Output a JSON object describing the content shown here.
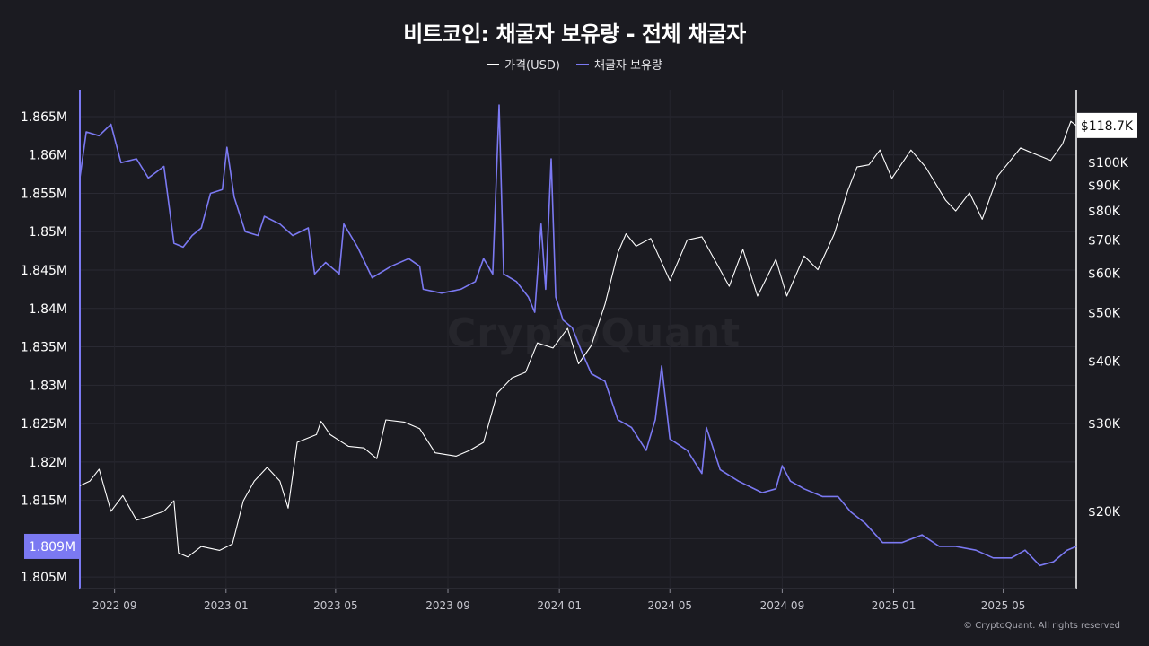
{
  "title": "비트코인: 채굴자 보유량 - 전체 채굴자",
  "legend": [
    {
      "label": "가격(USD)",
      "color": "#ffffff"
    },
    {
      "label": "채굴자 보유량",
      "color": "#7b79f2"
    }
  ],
  "watermark": "CryptoQuant",
  "copyright": "© CryptoQuant. All rights reserved",
  "left_current_label": "1.809M",
  "right_current_label": "$118.7K",
  "chart_data": {
    "type": "line",
    "title": "비트코인: 채굴자 보유량 - 전체 채굴자",
    "x_range": [
      "2022-07-25",
      "2025-07-20"
    ],
    "x_ticks": [
      {
        "date": "2022-09-01",
        "label": "2022 09"
      },
      {
        "date": "2023-01-01",
        "label": "2023 01"
      },
      {
        "date": "2023-05-01",
        "label": "2023 05"
      },
      {
        "date": "2023-09-01",
        "label": "2023 09"
      },
      {
        "date": "2024-01-01",
        "label": "2024 01"
      },
      {
        "date": "2024-05-01",
        "label": "2024 05"
      },
      {
        "date": "2024-09-01",
        "label": "2024 09"
      },
      {
        "date": "2025-01-01",
        "label": "2025 01"
      },
      {
        "date": "2025-05-01",
        "label": "2025 05"
      }
    ],
    "y_left": {
      "range": [
        1.8035,
        1.8685
      ],
      "ticks": [
        {
          "value": 1.805,
          "label": "1.805M"
        },
        {
          "value": 1.81,
          "label": "1.81M"
        },
        {
          "value": 1.815,
          "label": "1.815M"
        },
        {
          "value": 1.82,
          "label": "1.82M"
        },
        {
          "value": 1.825,
          "label": "1.825M"
        },
        {
          "value": 1.83,
          "label": "1.83M"
        },
        {
          "value": 1.835,
          "label": "1.835M"
        },
        {
          "value": 1.84,
          "label": "1.84M"
        },
        {
          "value": 1.845,
          "label": "1.845M"
        },
        {
          "value": 1.85,
          "label": "1.85M"
        },
        {
          "value": 1.855,
          "label": "1.855M"
        },
        {
          "value": 1.86,
          "label": "1.86M"
        },
        {
          "value": 1.865,
          "label": "1.865M"
        }
      ]
    },
    "y_right": {
      "scale": "log",
      "range": [
        14000,
        140000
      ],
      "ticks": [
        {
          "value": 20000,
          "label": "$20K"
        },
        {
          "value": 30000,
          "label": "$30K"
        },
        {
          "value": 40000,
          "label": "$40K"
        },
        {
          "value": 50000,
          "label": "$50K"
        },
        {
          "value": 60000,
          "label": "$60K"
        },
        {
          "value": 70000,
          "label": "$70K"
        },
        {
          "value": 80000,
          "label": "$80K"
        },
        {
          "value": 90000,
          "label": "$90K"
        },
        {
          "value": 100000,
          "label": "$100K"
        }
      ]
    },
    "series": [
      {
        "name": "채굴자 보유량",
        "axis": "left",
        "color": "#7b79f2",
        "points": [
          [
            "2022-07-25",
            1.857
          ],
          [
            "2022-08-01",
            1.863
          ],
          [
            "2022-08-15",
            1.8625
          ],
          [
            "2022-08-28",
            1.864
          ],
          [
            "2022-09-08",
            1.859
          ],
          [
            "2022-09-25",
            1.8595
          ],
          [
            "2022-10-08",
            1.857
          ],
          [
            "2022-10-25",
            1.8585
          ],
          [
            "2022-11-05",
            1.8485
          ],
          [
            "2022-11-15",
            1.848
          ],
          [
            "2022-11-25",
            1.8495
          ],
          [
            "2022-12-05",
            1.8505
          ],
          [
            "2022-12-15",
            1.855
          ],
          [
            "2022-12-28",
            1.8555
          ],
          [
            "2023-01-02",
            1.861
          ],
          [
            "2023-01-10",
            1.8545
          ],
          [
            "2023-01-22",
            1.85
          ],
          [
            "2023-02-05",
            1.8495
          ],
          [
            "2023-02-12",
            1.852
          ],
          [
            "2023-03-01",
            1.851
          ],
          [
            "2023-03-15",
            1.8495
          ],
          [
            "2023-04-01",
            1.8505
          ],
          [
            "2023-04-08",
            1.8445
          ],
          [
            "2023-04-20",
            1.846
          ],
          [
            "2023-05-05",
            1.8445
          ],
          [
            "2023-05-10",
            1.851
          ],
          [
            "2023-05-25",
            1.848
          ],
          [
            "2023-06-10",
            1.844
          ],
          [
            "2023-07-01",
            1.8455
          ],
          [
            "2023-07-20",
            1.8465
          ],
          [
            "2023-08-01",
            1.8455
          ],
          [
            "2023-08-05",
            1.8425
          ],
          [
            "2023-08-25",
            1.842
          ],
          [
            "2023-09-15",
            1.8425
          ],
          [
            "2023-10-01",
            1.8435
          ],
          [
            "2023-10-10",
            1.8465
          ],
          [
            "2023-10-20",
            1.8445
          ],
          [
            "2023-10-27",
            1.8665
          ],
          [
            "2023-11-01",
            1.8445
          ],
          [
            "2023-11-15",
            1.8435
          ],
          [
            "2023-11-28",
            1.8415
          ],
          [
            "2023-12-05",
            1.8395
          ],
          [
            "2023-12-12",
            1.851
          ],
          [
            "2023-12-17",
            1.8425
          ],
          [
            "2023-12-23",
            1.8595
          ],
          [
            "2023-12-28",
            1.8415
          ],
          [
            "2024-01-05",
            1.8385
          ],
          [
            "2024-01-15",
            1.8375
          ],
          [
            "2024-01-25",
            1.8345
          ],
          [
            "2024-02-05",
            1.8315
          ],
          [
            "2024-02-20",
            1.8305
          ],
          [
            "2024-03-05",
            1.8255
          ],
          [
            "2024-03-20",
            1.8245
          ],
          [
            "2024-04-05",
            1.8215
          ],
          [
            "2024-04-15",
            1.8255
          ],
          [
            "2024-04-22",
            1.8325
          ],
          [
            "2024-05-01",
            1.823
          ],
          [
            "2024-05-20",
            1.8215
          ],
          [
            "2024-06-05",
            1.8185
          ],
          [
            "2024-06-10",
            1.8245
          ],
          [
            "2024-06-25",
            1.819
          ],
          [
            "2024-07-15",
            1.8175
          ],
          [
            "2024-08-10",
            1.816
          ],
          [
            "2024-08-25",
            1.8165
          ],
          [
            "2024-09-01",
            1.8195
          ],
          [
            "2024-09-10",
            1.8175
          ],
          [
            "2024-09-25",
            1.8165
          ],
          [
            "2024-10-15",
            1.8155
          ],
          [
            "2024-11-01",
            1.8155
          ],
          [
            "2024-11-15",
            1.8135
          ],
          [
            "2024-12-01",
            1.812
          ],
          [
            "2024-12-20",
            1.8095
          ],
          [
            "2025-01-10",
            1.8095
          ],
          [
            "2025-02-01",
            1.8105
          ],
          [
            "2025-02-20",
            1.809
          ],
          [
            "2025-03-10",
            1.809
          ],
          [
            "2025-04-01",
            1.8085
          ],
          [
            "2025-04-20",
            1.8075
          ],
          [
            "2025-05-10",
            1.8075
          ],
          [
            "2025-05-25",
            1.8085
          ],
          [
            "2025-06-10",
            1.8065
          ],
          [
            "2025-06-25",
            1.807
          ],
          [
            "2025-07-05",
            1.808
          ],
          [
            "2025-07-10",
            1.8085
          ],
          [
            "2025-07-20",
            1.809
          ]
        ]
      },
      {
        "name": "가격(USD)",
        "axis": "right",
        "color": "#ffffff",
        "points": [
          [
            "2022-07-25",
            22500
          ],
          [
            "2022-08-05",
            23000
          ],
          [
            "2022-08-15",
            24300
          ],
          [
            "2022-08-28",
            20000
          ],
          [
            "2022-09-10",
            21500
          ],
          [
            "2022-09-25",
            19200
          ],
          [
            "2022-10-08",
            19500
          ],
          [
            "2022-10-25",
            20000
          ],
          [
            "2022-11-05",
            21000
          ],
          [
            "2022-11-10",
            16500
          ],
          [
            "2022-11-20",
            16200
          ],
          [
            "2022-12-05",
            17000
          ],
          [
            "2022-12-25",
            16700
          ],
          [
            "2023-01-08",
            17200
          ],
          [
            "2023-01-20",
            21000
          ],
          [
            "2023-02-01",
            23000
          ],
          [
            "2023-02-15",
            24500
          ],
          [
            "2023-03-01",
            23000
          ],
          [
            "2023-03-10",
            20300
          ],
          [
            "2023-03-20",
            27500
          ],
          [
            "2023-04-10",
            28500
          ],
          [
            "2023-04-15",
            30300
          ],
          [
            "2023-04-25",
            28500
          ],
          [
            "2023-05-15",
            27000
          ],
          [
            "2023-06-01",
            26800
          ],
          [
            "2023-06-15",
            25500
          ],
          [
            "2023-06-25",
            30500
          ],
          [
            "2023-07-15",
            30200
          ],
          [
            "2023-08-01",
            29300
          ],
          [
            "2023-08-18",
            26200
          ],
          [
            "2023-09-10",
            25800
          ],
          [
            "2023-09-25",
            26500
          ],
          [
            "2023-10-10",
            27500
          ],
          [
            "2023-10-25",
            34500
          ],
          [
            "2023-11-10",
            37000
          ],
          [
            "2023-11-25",
            38000
          ],
          [
            "2023-12-08",
            43500
          ],
          [
            "2023-12-25",
            42500
          ],
          [
            "2024-01-10",
            46500
          ],
          [
            "2024-01-22",
            39500
          ],
          [
            "2024-02-05",
            43000
          ],
          [
            "2024-02-20",
            52000
          ],
          [
            "2024-03-05",
            66000
          ],
          [
            "2024-03-14",
            72000
          ],
          [
            "2024-03-25",
            68000
          ],
          [
            "2024-04-10",
            70500
          ],
          [
            "2024-05-01",
            58000
          ],
          [
            "2024-05-20",
            70000
          ],
          [
            "2024-06-05",
            71000
          ],
          [
            "2024-06-25",
            61000
          ],
          [
            "2024-07-05",
            56500
          ],
          [
            "2024-07-20",
            67000
          ],
          [
            "2024-08-05",
            54000
          ],
          [
            "2024-08-25",
            64000
          ],
          [
            "2024-09-06",
            54000
          ],
          [
            "2024-09-25",
            65000
          ],
          [
            "2024-10-10",
            61000
          ],
          [
            "2024-10-28",
            72000
          ],
          [
            "2024-11-12",
            88000
          ],
          [
            "2024-11-22",
            98000
          ],
          [
            "2024-12-05",
            99000
          ],
          [
            "2024-12-17",
            106000
          ],
          [
            "2024-12-30",
            93000
          ],
          [
            "2025-01-20",
            106000
          ],
          [
            "2025-02-05",
            98000
          ],
          [
            "2025-02-27",
            84000
          ],
          [
            "2025-03-10",
            80000
          ],
          [
            "2025-03-25",
            87000
          ],
          [
            "2025-04-08",
            77000
          ],
          [
            "2025-04-25",
            94000
          ],
          [
            "2025-05-20",
            107000
          ],
          [
            "2025-06-05",
            104000
          ],
          [
            "2025-06-22",
            101000
          ],
          [
            "2025-07-05",
            109000
          ],
          [
            "2025-07-14",
            121000
          ],
          [
            "2025-07-20",
            118700
          ]
        ]
      }
    ]
  }
}
